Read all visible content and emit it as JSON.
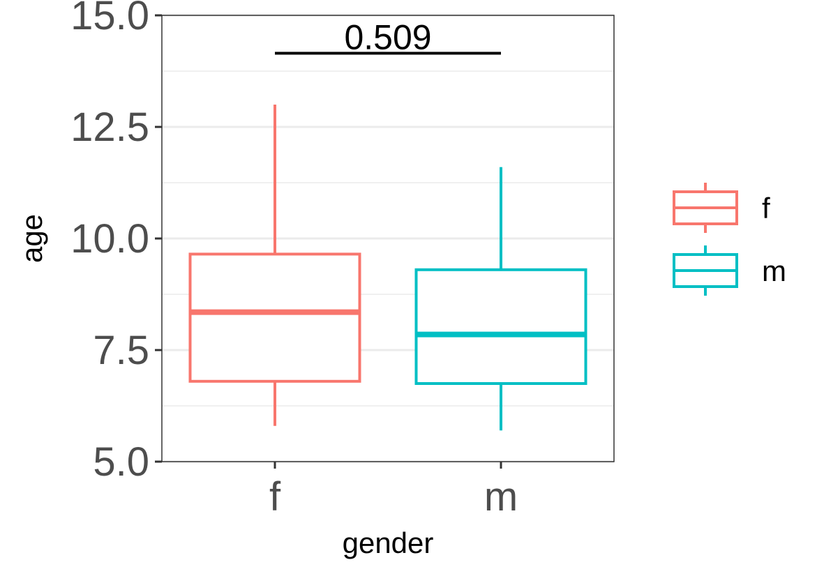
{
  "chart_data": {
    "type": "box",
    "title": "",
    "xlabel": "gender",
    "ylabel": "age",
    "ylim": [
      5.0,
      15.0
    ],
    "yticks": [
      "5.0",
      "7.5",
      "10.0",
      "12.5",
      "15.0"
    ],
    "ytick_values": [
      5.0,
      7.5,
      10.0,
      12.5,
      15.0
    ],
    "categories": [
      "f",
      "m"
    ],
    "grid": true,
    "legend_position": "right",
    "series": [
      {
        "name": "f",
        "color": "#F8766D",
        "min": 5.8,
        "q1": 6.8,
        "median": 8.35,
        "q3": 9.65,
        "max": 13.0
      },
      {
        "name": "m",
        "color": "#00BFC4",
        "min": 5.7,
        "q1": 6.75,
        "median": 7.85,
        "q3": 9.3,
        "max": 11.6
      }
    ],
    "annotation": {
      "text": "0.509",
      "y": 14.15,
      "from": "f",
      "to": "m"
    },
    "legend": [
      {
        "label": "f",
        "color": "#F8766D"
      },
      {
        "label": "m",
        "color": "#00BFC4"
      }
    ]
  }
}
